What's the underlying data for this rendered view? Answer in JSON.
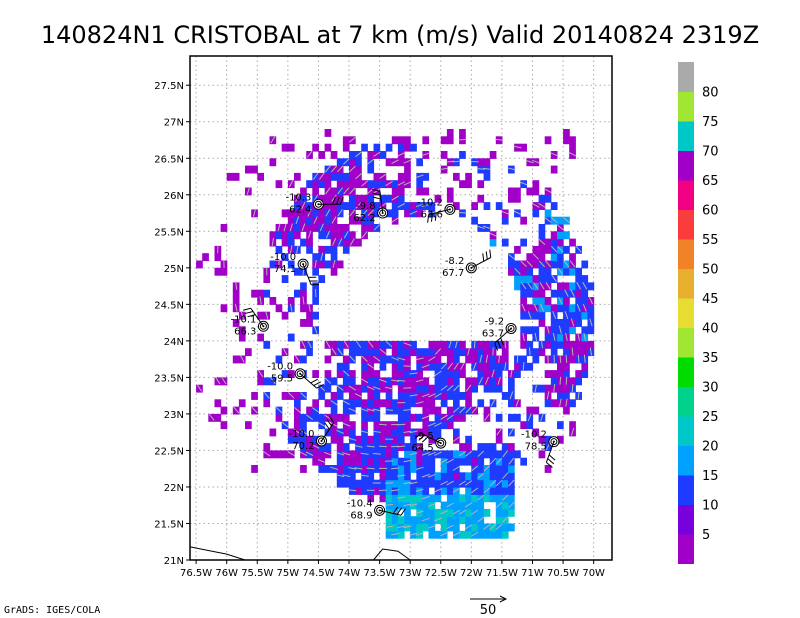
{
  "title": "140824N1 CRISTOBAL at 7 km (m/s) Valid 20140824 2319Z",
  "credit": "GrADS: IGES/COLA",
  "chart_data": {
    "type": "heatmap",
    "title": "140824N1 CRISTOBAL at 7 km (m/s) Valid 20140824 2319Z",
    "xlabel": "",
    "ylabel": "",
    "xlim": [
      -76.6,
      -69.7
    ],
    "ylim": [
      21,
      27.9
    ],
    "grid": true,
    "x_ticks": [
      {
        "value": -76.5,
        "label": "76.5W"
      },
      {
        "value": -76,
        "label": "76W"
      },
      {
        "value": -75.5,
        "label": "75.5W"
      },
      {
        "value": -75,
        "label": "75W"
      },
      {
        "value": -74.5,
        "label": "74.5W"
      },
      {
        "value": -74,
        "label": "74W"
      },
      {
        "value": -73.5,
        "label": "73.5W"
      },
      {
        "value": -73,
        "label": "73W"
      },
      {
        "value": -72.5,
        "label": "72.5W"
      },
      {
        "value": -72,
        "label": "72W"
      },
      {
        "value": -71.5,
        "label": "71.5W"
      },
      {
        "value": -71,
        "label": "71W"
      },
      {
        "value": -70.5,
        "label": "70.5W"
      },
      {
        "value": -70,
        "label": "70W"
      }
    ],
    "y_ticks": [
      {
        "value": 21,
        "label": "21N"
      },
      {
        "value": 21.5,
        "label": "21.5N"
      },
      {
        "value": 22,
        "label": "22N"
      },
      {
        "value": 22.5,
        "label": "22.5N"
      },
      {
        "value": 23,
        "label": "23N"
      },
      {
        "value": 23.5,
        "label": "23.5N"
      },
      {
        "value": 24,
        "label": "24N"
      },
      {
        "value": 24.5,
        "label": "24.5N"
      },
      {
        "value": 25,
        "label": "25N"
      },
      {
        "value": 25.5,
        "label": "25.5N"
      },
      {
        "value": 26,
        "label": "26N"
      },
      {
        "value": 26.5,
        "label": "26.5N"
      },
      {
        "value": 27,
        "label": "27N"
      },
      {
        "value": 27.5,
        "label": "27.5N"
      }
    ],
    "colorbar": {
      "colors": [
        "#a000c8",
        "#7800dc",
        "#1e3cff",
        "#00a0ff",
        "#00c8c8",
        "#00d28c",
        "#00dc00",
        "#a0e632",
        "#e6dc32",
        "#e6af2d",
        "#f08228",
        "#fa3c3c",
        "#f00082",
        "#a000c8",
        "#00c8c8",
        "#a0e632",
        "#aaaaaa"
      ],
      "labels": [
        "5",
        "10",
        "15",
        "20",
        "25",
        "30",
        "35",
        "40",
        "45",
        "50",
        "55",
        "60",
        "65",
        "70",
        "75",
        "80"
      ]
    },
    "dropsondes": [
      {
        "lon": -74.5,
        "lat": 25.87,
        "temp": "-10.3",
        "value": "62.4"
      },
      {
        "lon": -73.45,
        "lat": 25.75,
        "temp": "-9.8",
        "value": "62.2"
      },
      {
        "lon": -72.35,
        "lat": 25.8,
        "temp": "-10.2",
        "value": "63.6"
      },
      {
        "lon": -74.75,
        "lat": 25.05,
        "temp": "-10.0",
        "value": "74.1"
      },
      {
        "lon": -72.0,
        "lat": 25.0,
        "temp": "-8.2",
        "value": "67.7"
      },
      {
        "lon": -75.4,
        "lat": 24.2,
        "temp": "-10.1",
        "value": "66.3"
      },
      {
        "lon": -71.35,
        "lat": 24.17,
        "temp": "-9.2",
        "value": "63.7"
      },
      {
        "lon": -74.8,
        "lat": 23.55,
        "temp": "-10.0",
        "value": "59.5"
      },
      {
        "lon": -74.45,
        "lat": 22.63,
        "temp": "-10.0",
        "value": "70.2"
      },
      {
        "lon": -72.5,
        "lat": 22.6,
        "temp": "-9.5",
        "value": "64.5"
      },
      {
        "lon": -70.65,
        "lat": 22.62,
        "temp": "-10.2",
        "value": "78.5"
      },
      {
        "lon": -73.5,
        "lat": 21.68,
        "temp": "-10.4",
        "value": "68.9"
      }
    ],
    "reference_vector": {
      "label": "50",
      "units": "m/s"
    }
  }
}
